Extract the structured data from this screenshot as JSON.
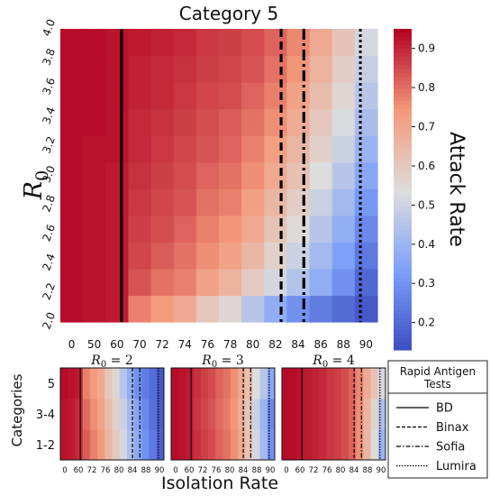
{
  "chart_data": {
    "type": "heatmap",
    "xlabel": "Isolation Rate",
    "main": {
      "title": "Category 5",
      "ylabel": "R",
      "ylabel_sub": "0",
      "x_ticks": [
        "0",
        "50",
        "60",
        "70",
        "72",
        "74",
        "76",
        "78",
        "80",
        "82",
        "84",
        "86",
        "88",
        "90"
      ],
      "y_ticks": [
        "2.0",
        "2.2",
        "2.4",
        "2.6",
        "2.8",
        "3.0",
        "3.2",
        "3.4",
        "3.6",
        "3.8",
        "4.0"
      ],
      "values": [
        [
          0.94,
          0.93,
          0.92,
          0.78,
          0.74,
          0.7,
          0.61,
          0.56,
          0.46,
          0.38,
          0.3,
          0.25,
          0.21,
          0.16
        ],
        [
          0.94,
          0.93,
          0.92,
          0.84,
          0.8,
          0.78,
          0.72,
          0.67,
          0.6,
          0.52,
          0.45,
          0.38,
          0.3,
          0.2
        ],
        [
          0.94,
          0.93,
          0.92,
          0.86,
          0.83,
          0.8,
          0.76,
          0.72,
          0.66,
          0.58,
          0.5,
          0.42,
          0.34,
          0.24
        ],
        [
          0.94,
          0.93,
          0.92,
          0.87,
          0.85,
          0.82,
          0.78,
          0.75,
          0.7,
          0.62,
          0.55,
          0.46,
          0.38,
          0.28
        ],
        [
          0.94,
          0.93,
          0.92,
          0.88,
          0.86,
          0.84,
          0.8,
          0.78,
          0.73,
          0.66,
          0.59,
          0.5,
          0.42,
          0.32
        ],
        [
          0.94,
          0.93,
          0.92,
          0.89,
          0.87,
          0.85,
          0.82,
          0.8,
          0.76,
          0.7,
          0.63,
          0.54,
          0.46,
          0.36
        ],
        [
          0.94,
          0.93,
          0.93,
          0.9,
          0.88,
          0.86,
          0.84,
          0.82,
          0.78,
          0.73,
          0.66,
          0.58,
          0.5,
          0.4
        ],
        [
          0.94,
          0.94,
          0.93,
          0.9,
          0.89,
          0.87,
          0.85,
          0.83,
          0.8,
          0.76,
          0.69,
          0.61,
          0.53,
          0.43
        ],
        [
          0.94,
          0.94,
          0.93,
          0.91,
          0.9,
          0.88,
          0.86,
          0.85,
          0.82,
          0.78,
          0.72,
          0.64,
          0.56,
          0.46
        ],
        [
          0.94,
          0.94,
          0.93,
          0.91,
          0.9,
          0.89,
          0.87,
          0.86,
          0.84,
          0.8,
          0.75,
          0.67,
          0.59,
          0.49
        ],
        [
          0.94,
          0.94,
          0.93,
          0.92,
          0.91,
          0.9,
          0.88,
          0.87,
          0.85,
          0.82,
          0.77,
          0.7,
          0.62,
          0.52
        ]
      ],
      "vlines": [
        {
          "test": "BD",
          "x": 62,
          "style": "solid"
        },
        {
          "test": "Binax",
          "x": 82.5,
          "style": "dashed"
        },
        {
          "test": "Sofia",
          "x": 84.5,
          "style": "dashdot"
        },
        {
          "test": "Lumira",
          "x": 89.5,
          "style": "dotted"
        }
      ]
    },
    "colorbar": {
      "label": "Attack Rate",
      "ticks": [
        "0.2",
        "0.3",
        "0.4",
        "0.5",
        "0.6",
        "0.7",
        "0.8",
        "0.9"
      ],
      "range": [
        0.13,
        0.95
      ]
    },
    "small": {
      "ylabel": "Categories",
      "y_ticks": [
        "1-2",
        "3-4",
        "5"
      ],
      "x_ticks": [
        "0",
        "60",
        "72",
        "76",
        "80",
        "84",
        "88",
        "90"
      ],
      "panels": [
        {
          "title": "R",
          "title_sub": "0",
          "title_value": " = 2",
          "values": [
            [
              0.93,
              0.92,
              0.9,
              0.83,
              0.78,
              0.74,
              0.66,
              0.6,
              0.52,
              0.44,
              0.37,
              0.3,
              0.24,
              0.18
            ],
            [
              0.93,
              0.92,
              0.9,
              0.81,
              0.76,
              0.72,
              0.64,
              0.58,
              0.5,
              0.42,
              0.35,
              0.28,
              0.22,
              0.17
            ],
            [
              0.94,
              0.93,
              0.92,
              0.78,
              0.74,
              0.7,
              0.61,
              0.56,
              0.46,
              0.38,
              0.3,
              0.25,
              0.21,
              0.16
            ]
          ]
        },
        {
          "title": "R",
          "title_sub": "0",
          "title_value": " = 3",
          "values": [
            [
              0.94,
              0.93,
              0.92,
              0.89,
              0.87,
              0.85,
              0.82,
              0.8,
              0.76,
              0.7,
              0.62,
              0.52,
              0.42,
              0.3
            ],
            [
              0.94,
              0.93,
              0.92,
              0.88,
              0.86,
              0.84,
              0.81,
              0.79,
              0.75,
              0.69,
              0.61,
              0.5,
              0.4,
              0.28
            ],
            [
              0.94,
              0.93,
              0.92,
              0.89,
              0.87,
              0.85,
              0.82,
              0.8,
              0.76,
              0.7,
              0.63,
              0.54,
              0.46,
              0.36
            ]
          ]
        },
        {
          "title": "R",
          "title_sub": "0",
          "title_value": " = 4",
          "values": [
            [
              0.94,
              0.94,
              0.93,
              0.92,
              0.91,
              0.9,
              0.88,
              0.87,
              0.85,
              0.82,
              0.76,
              0.66,
              0.55,
              0.4
            ],
            [
              0.94,
              0.94,
              0.93,
              0.92,
              0.91,
              0.9,
              0.88,
              0.87,
              0.85,
              0.82,
              0.76,
              0.67,
              0.57,
              0.44
            ],
            [
              0.94,
              0.94,
              0.93,
              0.92,
              0.91,
              0.9,
              0.88,
              0.87,
              0.85,
              0.82,
              0.77,
              0.7,
              0.62,
              0.52
            ]
          ]
        }
      ]
    },
    "legend": {
      "title_line1": "Rapid Antigen",
      "title_line2": "Tests",
      "entries": [
        {
          "label": "BD",
          "style": "solid"
        },
        {
          "label": "Binax",
          "style": "dashed"
        },
        {
          "label": "Sofia",
          "style": "dashdot"
        },
        {
          "label": "Lumira",
          "style": "dotted"
        }
      ]
    }
  }
}
